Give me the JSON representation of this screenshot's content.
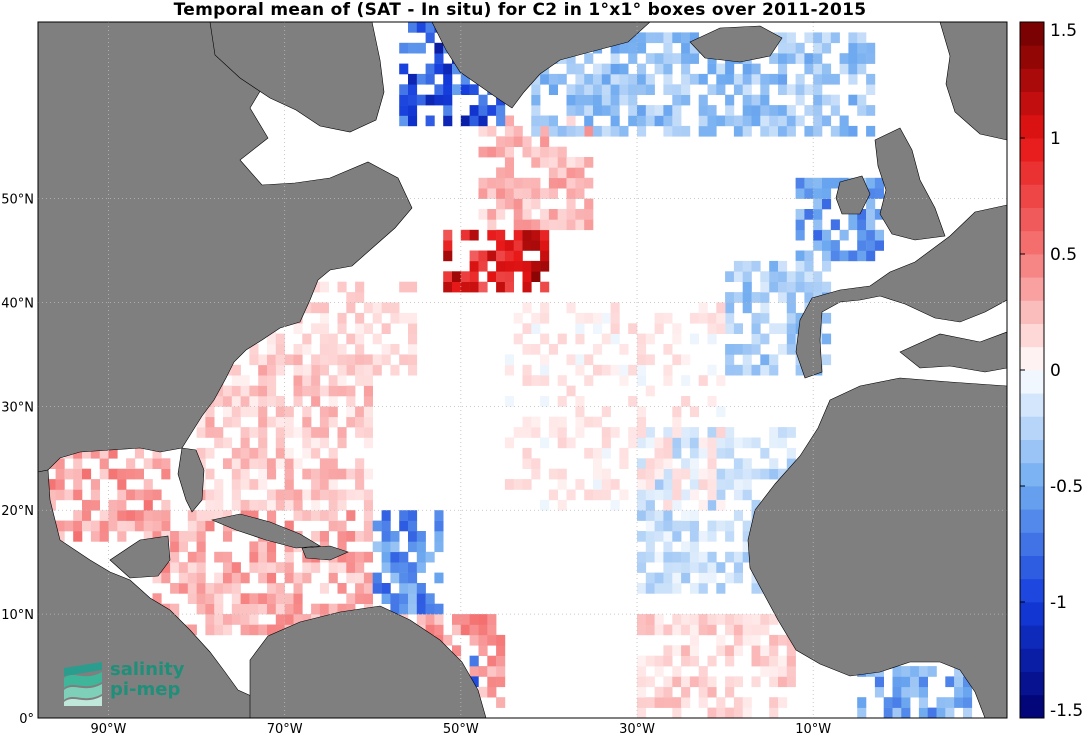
{
  "title": "Temporal mean of (SAT - In situ) for C2 in 1°x1° boxes over 2011-2015",
  "map": {
    "lon_range": [
      -98,
      12
    ],
    "lat_range": [
      0,
      67
    ],
    "x_ticks": [
      {
        "lon": -90,
        "label": "90°W"
      },
      {
        "lon": -70,
        "label": "70°W"
      },
      {
        "lon": -50,
        "label": "50°W"
      },
      {
        "lon": -30,
        "label": "30°W"
      },
      {
        "lon": -10,
        "label": "10°W"
      }
    ],
    "y_ticks": [
      {
        "lat": 0,
        "label": "0°"
      },
      {
        "lat": 10,
        "label": "10°N"
      },
      {
        "lat": 20,
        "label": "20°N"
      },
      {
        "lat": 30,
        "label": "30°N"
      },
      {
        "lat": 40,
        "label": "40°N"
      },
      {
        "lat": 50,
        "label": "50°N"
      }
    ],
    "grid": true,
    "land_color": "#7f7f7f",
    "ocean_color": "#ffffff"
  },
  "colorbar": {
    "min": -1.5,
    "max": 1.5,
    "ticks": [
      {
        "value": 1.5,
        "label": "1.5"
      },
      {
        "value": 1,
        "label": "1"
      },
      {
        "value": 0.5,
        "label": "0.5"
      },
      {
        "value": 0,
        "label": "0"
      },
      {
        "value": -0.5,
        "label": "-0.5"
      },
      {
        "value": -1,
        "label": "-1"
      },
      {
        "value": -1.5,
        "label": "-1.5"
      }
    ],
    "colormap": "blue-white-red diverging"
  },
  "logo": {
    "line1": "salinity",
    "line2": "pi-mep",
    "color": "#1f8f7a"
  },
  "chart_data": {
    "type": "heatmap",
    "title": "Temporal mean of (SAT - In situ) for C2 in 1°x1° boxes over 2011-2015",
    "value_range": [
      -1.5,
      1.5
    ],
    "regions": [
      {
        "lon": [
          -98,
          -83
        ],
        "lat": [
          17,
          30
        ],
        "value": 0.35
      },
      {
        "lon": [
          -85,
          -60
        ],
        "lat": [
          8,
          20
        ],
        "value": 0.3
      },
      {
        "lon": [
          -80,
          -60
        ],
        "lat": [
          20,
          35
        ],
        "value": 0.2
      },
      {
        "lon": [
          -75,
          -55
        ],
        "lat": [
          33,
          42
        ],
        "value": 0.12
      },
      {
        "lon": [
          -52,
          -40
        ],
        "lat": [
          41,
          47
        ],
        "value": 1.0
      },
      {
        "lon": [
          -48,
          -35
        ],
        "lat": [
          47,
          58
        ],
        "value": 0.25
      },
      {
        "lon": [
          -60,
          -45
        ],
        "lat": [
          1,
          10
        ],
        "value": 0.35
      },
      {
        "lon": [
          -56,
          -48
        ],
        "lat": [
          2,
          6
        ],
        "value": -1.0
      },
      {
        "lon": [
          -60,
          -52
        ],
        "lat": [
          10,
          20
        ],
        "value": -0.6
      },
      {
        "lon": [
          -57,
          -45
        ],
        "lat": [
          57,
          67
        ],
        "value": -0.9
      },
      {
        "lon": [
          -42,
          -3
        ],
        "lat": [
          56,
          66
        ],
        "value": -0.35
      },
      {
        "lon": [
          -12,
          -2
        ],
        "lat": [
          44,
          52
        ],
        "value": -0.55
      },
      {
        "lon": [
          -20,
          -8
        ],
        "lat": [
          33,
          44
        ],
        "value": -0.3
      },
      {
        "lon": [
          -30,
          -12
        ],
        "lat": [
          12,
          28
        ],
        "value": -0.2
      },
      {
        "lon": [
          -45,
          -20
        ],
        "lat": [
          20,
          40
        ],
        "value": 0.05
      },
      {
        "lon": [
          -30,
          -12
        ],
        "lat": [
          0,
          10
        ],
        "value": 0.15
      },
      {
        "lon": [
          -5,
          10
        ],
        "lat": [
          0,
          5
        ],
        "value": -0.5
      }
    ]
  }
}
